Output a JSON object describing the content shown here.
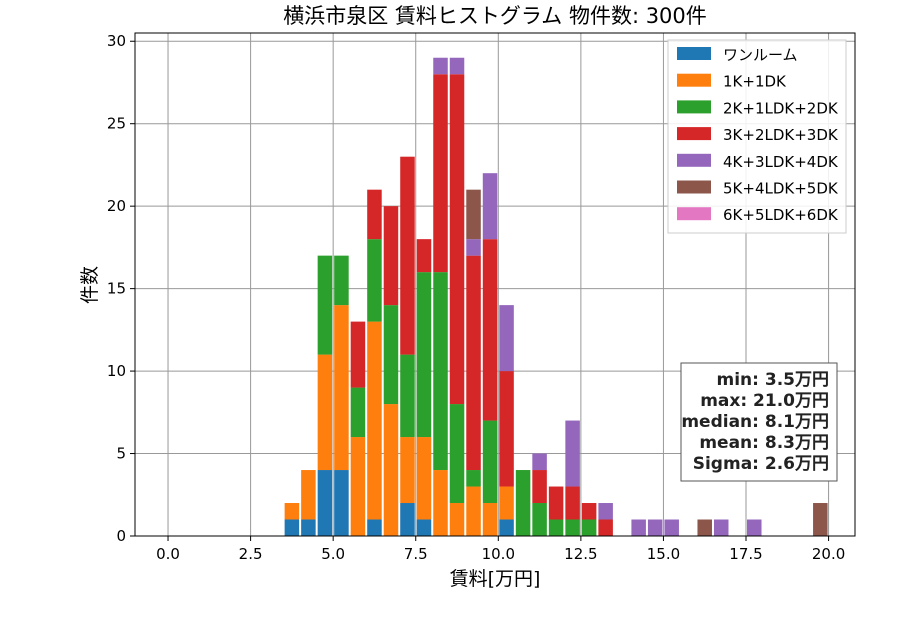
{
  "chart_data": {
    "type": "bar",
    "title": "横浜市泉区 賃料ヒストグラム 物件数: 300件",
    "xlabel": "賃料[万円]",
    "ylabel": "件数",
    "xlim": [
      -1.0,
      20.8
    ],
    "ylim": [
      0,
      30.5
    ],
    "xticks": [
      0.0,
      2.5,
      5.0,
      7.5,
      10.0,
      12.5,
      15.0,
      17.5,
      20.0
    ],
    "xtick_labels": [
      "0.0",
      "2.5",
      "5.0",
      "7.5",
      "10.0",
      "12.5",
      "15.0",
      "17.5",
      "20.0"
    ],
    "yticks": [
      0,
      5,
      10,
      15,
      20,
      25,
      30
    ],
    "ytick_labels": [
      "0",
      "5",
      "10",
      "15",
      "20",
      "25",
      "30"
    ],
    "grid": true,
    "stacked": true,
    "bin_width": 0.5,
    "legend_position": "top-right",
    "bins": [
      3.5,
      4.0,
      4.5,
      5.0,
      5.5,
      6.0,
      6.5,
      7.0,
      7.5,
      8.0,
      8.5,
      9.0,
      9.5,
      10.0,
      10.5,
      11.0,
      11.5,
      12.0,
      12.5,
      13.0,
      13.5,
      14.0,
      14.5,
      15.0,
      15.5,
      16.0,
      16.5,
      17.0,
      17.5,
      18.0,
      18.5,
      19.0,
      19.5
    ],
    "series": [
      {
        "name": "ワンルーム",
        "color": "#1f77b4",
        "values": [
          1,
          1,
          4,
          4,
          0,
          1,
          0,
          2,
          1,
          0,
          0,
          0,
          0,
          1,
          0,
          0,
          0,
          0,
          0,
          0,
          0,
          0,
          0,
          0,
          0,
          0,
          0,
          0,
          0,
          0,
          0,
          0,
          0
        ]
      },
      {
        "name": "1K+1DK",
        "color": "#ff7f0e",
        "values": [
          1,
          3,
          7,
          10,
          6,
          12,
          8,
          4,
          5,
          4,
          2,
          3,
          2,
          2,
          0,
          0,
          0,
          0,
          0,
          0,
          0,
          0,
          0,
          0,
          0,
          0,
          0,
          0,
          0,
          0,
          0,
          0,
          0
        ]
      },
      {
        "name": "2K+1LDK+2DK",
        "color": "#2ca02c",
        "values": [
          0,
          0,
          6,
          3,
          3,
          5,
          6,
          5,
          10,
          12,
          6,
          1,
          5,
          0,
          4,
          2,
          1,
          1,
          1,
          0,
          0,
          0,
          0,
          0,
          0,
          0,
          0,
          0,
          0,
          0,
          0,
          0,
          0
        ]
      },
      {
        "name": "3K+2LDK+3DK",
        "color": "#d62728",
        "values": [
          0,
          0,
          0,
          0,
          4,
          3,
          6,
          12,
          2,
          12,
          20,
          13,
          11,
          7,
          0,
          2,
          2,
          2,
          1,
          1,
          0,
          0,
          0,
          0,
          0,
          0,
          0,
          0,
          0,
          0,
          0,
          0,
          0
        ]
      },
      {
        "name": "4K+3LDK+4DK",
        "color": "#9467bd",
        "values": [
          0,
          0,
          0,
          0,
          0,
          0,
          0,
          0,
          0,
          1,
          1,
          1,
          4,
          4,
          0,
          1,
          0,
          4,
          0,
          1,
          0,
          1,
          1,
          1,
          0,
          0,
          1,
          0,
          1,
          0,
          0,
          0,
          0
        ]
      },
      {
        "name": "5K+4LDK+5DK",
        "color": "#8c564b",
        "values": [
          0,
          0,
          0,
          0,
          0,
          0,
          0,
          0,
          0,
          0,
          0,
          3,
          0,
          0,
          0,
          0,
          0,
          0,
          0,
          0,
          0,
          0,
          0,
          0,
          0,
          1,
          0,
          0,
          0,
          0,
          0,
          0,
          2
        ]
      },
      {
        "name": "6K+5LDK+6DK",
        "color": "#e377c2",
        "values": [
          0,
          0,
          0,
          0,
          0,
          0,
          0,
          0,
          0,
          0,
          0,
          0,
          0,
          0,
          0,
          0,
          0,
          0,
          0,
          0,
          0,
          0,
          0,
          0,
          0,
          0,
          0,
          0,
          0,
          0,
          0,
          0,
          0
        ]
      }
    ],
    "stats": {
      "min": "min: 3.5万円",
      "max": "max: 21.0万円",
      "median": "median: 8.1万円",
      "mean": "mean: 8.3万円",
      "sigma": "Sigma: 2.6万円"
    }
  }
}
